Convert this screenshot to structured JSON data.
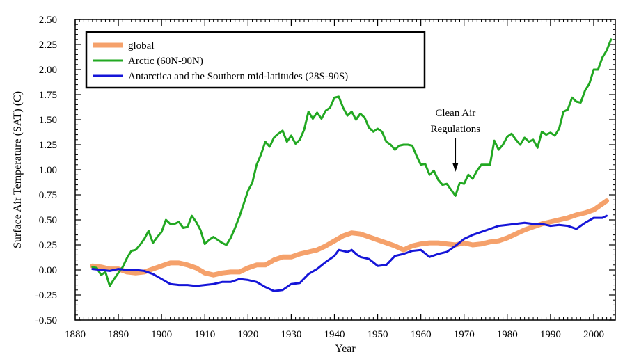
{
  "chart_data": {
    "type": "line",
    "title": "",
    "xlabel": "Year",
    "ylabel": "Surface Air Temperature (SAT) (C)",
    "xlim": [
      1880,
      2005
    ],
    "ylim": [
      -0.5,
      2.5
    ],
    "xticks": [
      1880,
      1890,
      1900,
      1910,
      1920,
      1930,
      1940,
      1950,
      1960,
      1970,
      1980,
      1990,
      2000
    ],
    "xtick_labels": [
      "1880",
      "1890",
      "1900",
      "1910",
      "1920",
      "1930",
      "1940",
      "1950",
      "1960",
      "1970",
      "1980",
      "1990",
      "2000"
    ],
    "yticks": [
      -0.5,
      -0.25,
      0,
      0.25,
      0.5,
      0.75,
      1.0,
      1.25,
      1.5,
      1.75,
      2.0,
      2.25,
      2.5
    ],
    "ytick_labels": [
      "-0.50",
      "-0.25",
      "0.00",
      "0.25",
      "0.50",
      "0.75",
      "1.00",
      "1.25",
      "1.50",
      "1.75",
      "2.00",
      "2.25",
      "2.50"
    ],
    "grid": false,
    "legend_position": "top-left",
    "series": [
      {
        "name": "global",
        "color": "#f5a16b",
        "points": [
          [
            1884,
            0.04
          ],
          [
            1886,
            0.03
          ],
          [
            1888,
            0.01
          ],
          [
            1890,
            0.01
          ],
          [
            1892,
            -0.02
          ],
          [
            1894,
            -0.03
          ],
          [
            1896,
            -0.02
          ],
          [
            1898,
            0.01
          ],
          [
            1900,
            0.04
          ],
          [
            1902,
            0.07
          ],
          [
            1904,
            0.07
          ],
          [
            1906,
            0.05
          ],
          [
            1908,
            0.02
          ],
          [
            1910,
            -0.03
          ],
          [
            1912,
            -0.05
          ],
          [
            1914,
            -0.03
          ],
          [
            1916,
            -0.02
          ],
          [
            1918,
            -0.02
          ],
          [
            1920,
            0.02
          ],
          [
            1922,
            0.05
          ],
          [
            1924,
            0.05
          ],
          [
            1926,
            0.1
          ],
          [
            1928,
            0.13
          ],
          [
            1930,
            0.13
          ],
          [
            1932,
            0.16
          ],
          [
            1934,
            0.18
          ],
          [
            1936,
            0.2
          ],
          [
            1938,
            0.24
          ],
          [
            1940,
            0.29
          ],
          [
            1942,
            0.34
          ],
          [
            1944,
            0.37
          ],
          [
            1946,
            0.36
          ],
          [
            1948,
            0.33
          ],
          [
            1950,
            0.3
          ],
          [
            1952,
            0.27
          ],
          [
            1954,
            0.24
          ],
          [
            1956,
            0.2
          ],
          [
            1958,
            0.24
          ],
          [
            1960,
            0.26
          ],
          [
            1962,
            0.27
          ],
          [
            1964,
            0.27
          ],
          [
            1966,
            0.26
          ],
          [
            1968,
            0.25
          ],
          [
            1970,
            0.27
          ],
          [
            1972,
            0.25
          ],
          [
            1974,
            0.26
          ],
          [
            1976,
            0.28
          ],
          [
            1978,
            0.29
          ],
          [
            1980,
            0.32
          ],
          [
            1982,
            0.36
          ],
          [
            1984,
            0.4
          ],
          [
            1986,
            0.43
          ],
          [
            1988,
            0.46
          ],
          [
            1990,
            0.48
          ],
          [
            1992,
            0.5
          ],
          [
            1994,
            0.52
          ],
          [
            1996,
            0.55
          ],
          [
            1998,
            0.57
          ],
          [
            2000,
            0.6
          ],
          [
            2002,
            0.66
          ],
          [
            2003,
            0.69
          ]
        ]
      },
      {
        "name": "Arctic (60N-90N)",
        "color": "#22a822",
        "points": [
          [
            1884,
            0.03
          ],
          [
            1885,
            0.02
          ],
          [
            1886,
            -0.05
          ],
          [
            1887,
            -0.02
          ],
          [
            1888,
            -0.16
          ],
          [
            1889,
            -0.09
          ],
          [
            1890,
            -0.03
          ],
          [
            1891,
            0.03
          ],
          [
            1892,
            0.12
          ],
          [
            1893,
            0.19
          ],
          [
            1894,
            0.2
          ],
          [
            1895,
            0.25
          ],
          [
            1896,
            0.31
          ],
          [
            1897,
            0.39
          ],
          [
            1898,
            0.27
          ],
          [
            1899,
            0.33
          ],
          [
            1900,
            0.38
          ],
          [
            1901,
            0.5
          ],
          [
            1902,
            0.46
          ],
          [
            1903,
            0.46
          ],
          [
            1904,
            0.48
          ],
          [
            1905,
            0.42
          ],
          [
            1906,
            0.43
          ],
          [
            1907,
            0.54
          ],
          [
            1908,
            0.48
          ],
          [
            1909,
            0.4
          ],
          [
            1910,
            0.26
          ],
          [
            1911,
            0.3
          ],
          [
            1912,
            0.33
          ],
          [
            1913,
            0.3
          ],
          [
            1914,
            0.27
          ],
          [
            1915,
            0.25
          ],
          [
            1916,
            0.32
          ],
          [
            1917,
            0.42
          ],
          [
            1918,
            0.53
          ],
          [
            1919,
            0.66
          ],
          [
            1920,
            0.79
          ],
          [
            1921,
            0.87
          ],
          [
            1922,
            1.05
          ],
          [
            1923,
            1.15
          ],
          [
            1924,
            1.28
          ],
          [
            1925,
            1.23
          ],
          [
            1926,
            1.32
          ],
          [
            1927,
            1.36
          ],
          [
            1928,
            1.39
          ],
          [
            1929,
            1.28
          ],
          [
            1930,
            1.34
          ],
          [
            1931,
            1.26
          ],
          [
            1932,
            1.3
          ],
          [
            1933,
            1.4
          ],
          [
            1934,
            1.58
          ],
          [
            1935,
            1.51
          ],
          [
            1936,
            1.57
          ],
          [
            1937,
            1.51
          ],
          [
            1938,
            1.59
          ],
          [
            1939,
            1.62
          ],
          [
            1940,
            1.72
          ],
          [
            1941,
            1.73
          ],
          [
            1942,
            1.62
          ],
          [
            1943,
            1.54
          ],
          [
            1944,
            1.58
          ],
          [
            1945,
            1.5
          ],
          [
            1946,
            1.56
          ],
          [
            1947,
            1.52
          ],
          [
            1948,
            1.42
          ],
          [
            1949,
            1.38
          ],
          [
            1950,
            1.41
          ],
          [
            1951,
            1.38
          ],
          [
            1952,
            1.28
          ],
          [
            1953,
            1.25
          ],
          [
            1954,
            1.2
          ],
          [
            1955,
            1.24
          ],
          [
            1956,
            1.25
          ],
          [
            1957,
            1.25
          ],
          [
            1958,
            1.24
          ],
          [
            1959,
            1.14
          ],
          [
            1960,
            1.05
          ],
          [
            1961,
            1.06
          ],
          [
            1962,
            0.95
          ],
          [
            1963,
            0.99
          ],
          [
            1964,
            0.9
          ],
          [
            1965,
            0.85
          ],
          [
            1966,
            0.86
          ],
          [
            1967,
            0.8
          ],
          [
            1968,
            0.74
          ],
          [
            1969,
            0.87
          ],
          [
            1970,
            0.86
          ],
          [
            1971,
            0.95
          ],
          [
            1972,
            0.91
          ],
          [
            1973,
            0.99
          ],
          [
            1974,
            1.05
          ],
          [
            1975,
            1.05
          ],
          [
            1976,
            1.05
          ],
          [
            1977,
            1.29
          ],
          [
            1978,
            1.2
          ],
          [
            1979,
            1.25
          ],
          [
            1980,
            1.33
          ],
          [
            1981,
            1.36
          ],
          [
            1982,
            1.3
          ],
          [
            1983,
            1.25
          ],
          [
            1984,
            1.32
          ],
          [
            1985,
            1.28
          ],
          [
            1986,
            1.3
          ],
          [
            1987,
            1.22
          ],
          [
            1988,
            1.38
          ],
          [
            1989,
            1.35
          ],
          [
            1990,
            1.37
          ],
          [
            1991,
            1.34
          ],
          [
            1992,
            1.41
          ],
          [
            1993,
            1.58
          ],
          [
            1994,
            1.6
          ],
          [
            1995,
            1.72
          ],
          [
            1996,
            1.68
          ],
          [
            1997,
            1.67
          ],
          [
            1998,
            1.79
          ],
          [
            1999,
            1.86
          ],
          [
            2000,
            2.0
          ],
          [
            2001,
            2.0
          ],
          [
            2002,
            2.12
          ],
          [
            2003,
            2.19
          ],
          [
            2004,
            2.3
          ]
        ]
      },
      {
        "name": "Antarctica and the Southern mid-latitudes (28S-90S)",
        "color": "#1515d8",
        "points": [
          [
            1884,
            0.01
          ],
          [
            1886,
            0.0
          ],
          [
            1888,
            -0.01
          ],
          [
            1890,
            0.01
          ],
          [
            1892,
            0.0
          ],
          [
            1894,
            0.0
          ],
          [
            1896,
            -0.01
          ],
          [
            1898,
            -0.04
          ],
          [
            1900,
            -0.09
          ],
          [
            1902,
            -0.14
          ],
          [
            1904,
            -0.15
          ],
          [
            1906,
            -0.15
          ],
          [
            1908,
            -0.16
          ],
          [
            1910,
            -0.15
          ],
          [
            1912,
            -0.14
          ],
          [
            1914,
            -0.12
          ],
          [
            1916,
            -0.12
          ],
          [
            1918,
            -0.09
          ],
          [
            1920,
            -0.1
          ],
          [
            1922,
            -0.12
          ],
          [
            1924,
            -0.17
          ],
          [
            1926,
            -0.21
          ],
          [
            1928,
            -0.2
          ],
          [
            1930,
            -0.14
          ],
          [
            1932,
            -0.13
          ],
          [
            1934,
            -0.04
          ],
          [
            1936,
            0.01
          ],
          [
            1938,
            0.08
          ],
          [
            1940,
            0.14
          ],
          [
            1941,
            0.2
          ],
          [
            1942,
            0.19
          ],
          [
            1943,
            0.18
          ],
          [
            1944,
            0.2
          ],
          [
            1945,
            0.16
          ],
          [
            1946,
            0.13
          ],
          [
            1948,
            0.11
          ],
          [
            1950,
            0.04
          ],
          [
            1952,
            0.05
          ],
          [
            1954,
            0.14
          ],
          [
            1956,
            0.16
          ],
          [
            1958,
            0.19
          ],
          [
            1960,
            0.2
          ],
          [
            1962,
            0.13
          ],
          [
            1964,
            0.16
          ],
          [
            1966,
            0.18
          ],
          [
            1968,
            0.24
          ],
          [
            1970,
            0.31
          ],
          [
            1972,
            0.35
          ],
          [
            1974,
            0.38
          ],
          [
            1976,
            0.41
          ],
          [
            1978,
            0.44
          ],
          [
            1980,
            0.45
          ],
          [
            1982,
            0.46
          ],
          [
            1984,
            0.47
          ],
          [
            1986,
            0.46
          ],
          [
            1988,
            0.46
          ],
          [
            1990,
            0.44
          ],
          [
            1992,
            0.45
          ],
          [
            1994,
            0.44
          ],
          [
            1996,
            0.41
          ],
          [
            1998,
            0.47
          ],
          [
            2000,
            0.52
          ],
          [
            2002,
            0.52
          ],
          [
            2003,
            0.54
          ]
        ]
      }
    ],
    "annotations": [
      {
        "lines": [
          "Clean Air",
          "Regulations"
        ],
        "x": 1968,
        "y": 0.98,
        "arrow": "down"
      }
    ]
  }
}
